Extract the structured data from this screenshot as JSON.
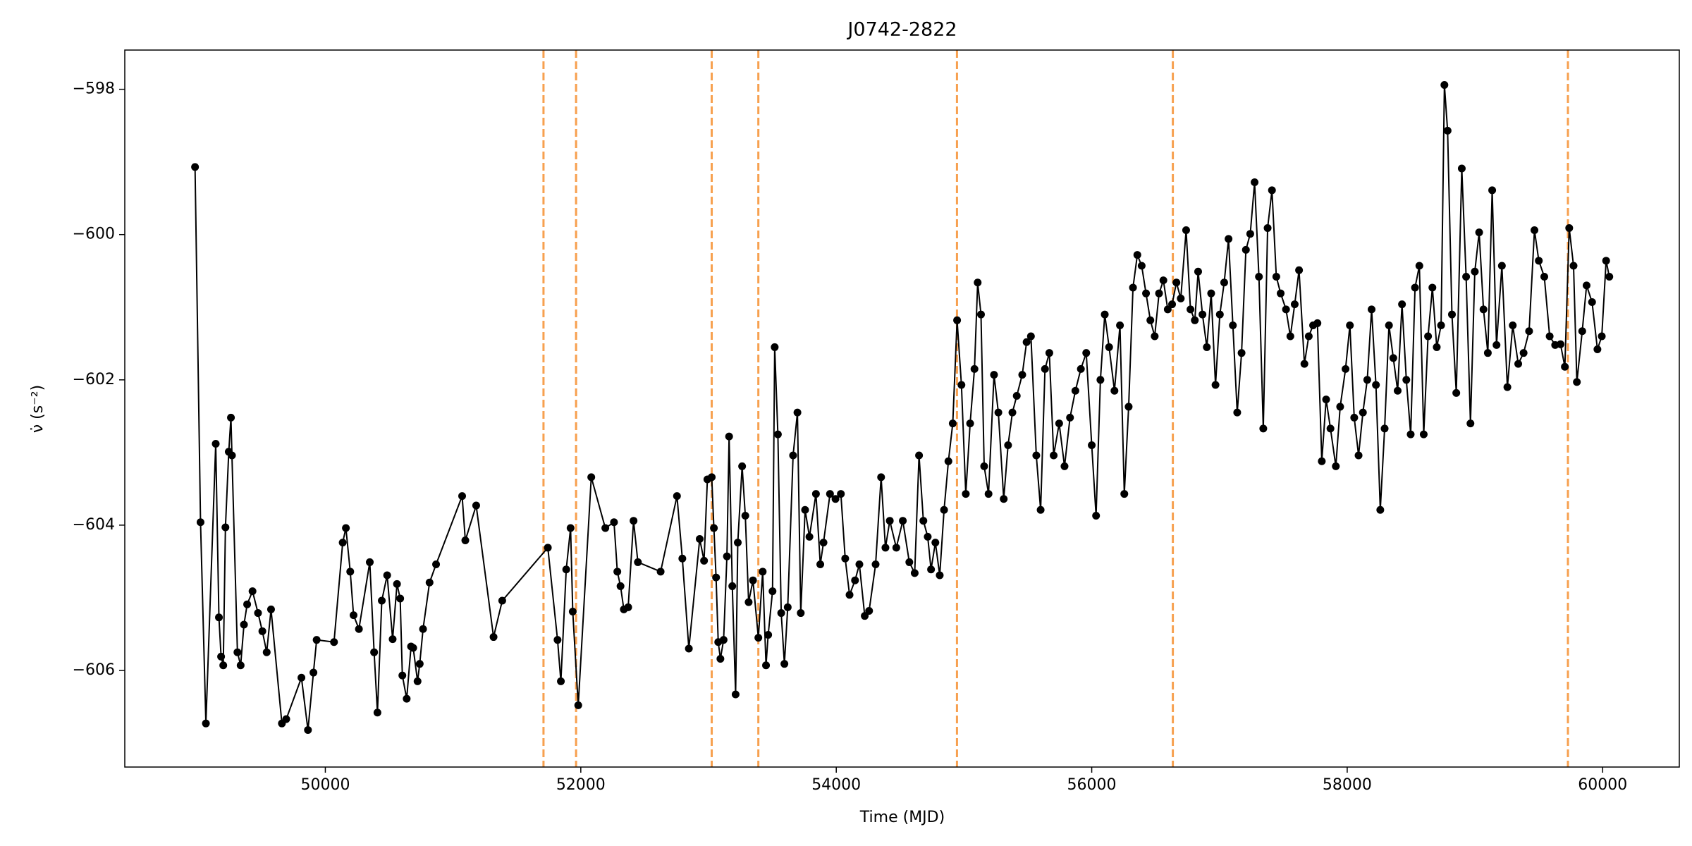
{
  "chart_data": {
    "type": "line",
    "title": "J0742-2822",
    "xlabel": "Time (MJD)",
    "ylabel": "ν̇ (s⁻²)",
    "x": [
      48980,
      49023,
      49065,
      49142,
      49167,
      49184,
      49201,
      49218,
      49244,
      49261,
      49269,
      49312,
      49337,
      49363,
      49388,
      49430,
      49473,
      49507,
      49541,
      49575,
      49660,
      49694,
      49813,
      49864,
      49907,
      49932,
      50068,
      50136,
      50161,
      50195,
      50221,
      50263,
      50348,
      50382,
      50408,
      50442,
      50484,
      50527,
      50561,
      50586,
      50603,
      50637,
      50671,
      50688,
      50722,
      50739,
      50765,
      50816,
      50867,
      51071,
      51096,
      51181,
      51317,
      51385,
      51742,
      51818,
      51844,
      51886,
      51920,
      51937,
      51980,
      52082,
      52192,
      52260,
      52286,
      52311,
      52337,
      52371,
      52413,
      52447,
      52625,
      52753,
      52795,
      52846,
      52931,
      52965,
      52991,
      53025,
      53042,
      53059,
      53076,
      53093,
      53118,
      53144,
      53161,
      53186,
      53212,
      53229,
      53263,
      53288,
      53314,
      53348,
      53390,
      53424,
      53450,
      53467,
      53501,
      53518,
      53543,
      53569,
      53594,
      53620,
      53662,
      53696,
      53722,
      53756,
      53790,
      53841,
      53875,
      53900,
      53951,
      53994,
      54036,
      54070,
      54104,
      54147,
      54181,
      54223,
      54257,
      54308,
      54351,
      54385,
      54419,
      54470,
      54521,
      54572,
      54614,
      54648,
      54682,
      54716,
      54742,
      54776,
      54810,
      54844,
      54878,
      54912,
      54946,
      54980,
      55014,
      55048,
      55082,
      55107,
      55133,
      55158,
      55192,
      55235,
      55269,
      55311,
      55345,
      55379,
      55413,
      55456,
      55490,
      55524,
      55566,
      55600,
      55634,
      55668,
      55702,
      55745,
      55787,
      55830,
      55872,
      55915,
      55957,
      56000,
      56034,
      56068,
      56102,
      56136,
      56178,
      56221,
      56255,
      56289,
      56323,
      56357,
      56391,
      56425,
      56459,
      56493,
      56527,
      56561,
      56595,
      56629,
      56663,
      56697,
      56739,
      56773,
      56807,
      56833,
      56867,
      56901,
      56935,
      56969,
      57003,
      57037,
      57071,
      57105,
      57139,
      57173,
      57207,
      57241,
      57275,
      57309,
      57343,
      57377,
      57411,
      57445,
      57479,
      57521,
      57555,
      57589,
      57623,
      57665,
      57699,
      57733,
      57767,
      57801,
      57835,
      57869,
      57911,
      57945,
      57987,
      58021,
      58055,
      58089,
      58123,
      58157,
      58191,
      58225,
      58259,
      58293,
      58327,
      58361,
      58395,
      58429,
      58463,
      58497,
      58531,
      58565,
      58599,
      58633,
      58667,
      58701,
      58735,
      58761,
      58786,
      58820,
      58854,
      58897,
      58931,
      58965,
      58999,
      59033,
      59067,
      59101,
      59135,
      59169,
      59211,
      59254,
      59296,
      59339,
      59381,
      59424,
      59466,
      59500,
      59543,
      59585,
      59628,
      59670,
      59704,
      59738,
      59772,
      59798,
      59840,
      59874,
      59917,
      59959,
      59993,
      60027,
      60052
    ],
    "series": [
      {
        "color": "#000000",
        "values": [
          -599.07,
          -603.96,
          -606.73,
          -602.88,
          -605.27,
          -605.81,
          -605.93,
          -604.03,
          -602.99,
          -602.52,
          -603.04,
          -605.75,
          -605.93,
          -605.37,
          -605.09,
          -604.91,
          -605.21,
          -605.46,
          -605.75,
          -605.16,
          -606.73,
          -606.67,
          -606.1,
          -606.82,
          -606.03,
          -605.58,
          -605.61,
          -604.24,
          -604.04,
          -604.64,
          -605.24,
          -605.43,
          -604.51,
          -605.75,
          -606.58,
          -605.04,
          -604.69,
          -605.57,
          -604.81,
          -605.01,
          -606.07,
          -606.39,
          -605.67,
          -605.69,
          -606.15,
          -605.91,
          -605.43,
          -604.79,
          -604.54,
          -603.6,
          -604.21,
          -603.73,
          -605.54,
          -605.04,
          -604.31,
          -605.58,
          -606.15,
          -604.61,
          -604.04,
          -605.19,
          -606.48,
          -603.34,
          -604.04,
          -603.96,
          -604.64,
          -604.84,
          -605.16,
          -605.13,
          -603.94,
          -604.51,
          -604.64,
          -603.6,
          -604.46,
          -605.7,
          -604.19,
          -604.49,
          -603.37,
          -603.34,
          -604.04,
          -604.72,
          -605.61,
          -605.84,
          -605.58,
          -604.43,
          -602.78,
          -604.84,
          -606.33,
          -604.24,
          -603.19,
          -603.87,
          -605.06,
          -604.76,
          -605.55,
          -604.64,
          -605.93,
          -605.51,
          -604.91,
          -601.55,
          -602.75,
          -605.21,
          -605.91,
          -605.13,
          -603.04,
          -602.45,
          -605.21,
          -603.79,
          -604.16,
          -603.57,
          -604.54,
          -604.24,
          -603.57,
          -603.64,
          -603.57,
          -604.46,
          -604.96,
          -604.76,
          -604.54,
          -605.25,
          -605.18,
          -604.54,
          -603.34,
          -604.31,
          -603.94,
          -604.31,
          -603.94,
          -604.51,
          -604.66,
          -603.04,
          -603.94,
          -604.16,
          -604.61,
          -604.24,
          -604.69,
          -603.79,
          -603.12,
          -602.6,
          -601.18,
          -602.07,
          -603.57,
          -602.6,
          -601.85,
          -600.66,
          -601.1,
          -603.19,
          -603.57,
          -601.93,
          -602.45,
          -603.64,
          -602.9,
          -602.45,
          -602.22,
          -601.93,
          -601.48,
          -601.4,
          -603.04,
          -603.79,
          -601.85,
          -601.63,
          -603.04,
          -602.6,
          -603.19,
          -602.52,
          -602.15,
          -601.85,
          -601.63,
          -602.9,
          -603.87,
          -602.0,
          -601.1,
          -601.55,
          -602.15,
          -601.25,
          -603.57,
          -602.37,
          -600.73,
          -600.28,
          -600.43,
          -600.81,
          -601.18,
          -601.4,
          -600.81,
          -600.63,
          -601.03,
          -600.96,
          -600.66,
          -600.88,
          -599.94,
          -601.03,
          -601.18,
          -600.51,
          -601.1,
          -601.55,
          -600.81,
          -602.07,
          -601.1,
          -600.66,
          -600.06,
          -601.25,
          -602.45,
          -601.63,
          -600.21,
          -599.99,
          -599.28,
          -600.58,
          -602.67,
          -599.91,
          -599.39,
          -600.58,
          -600.81,
          -601.03,
          -601.4,
          -600.96,
          -600.49,
          -601.78,
          -601.4,
          -601.25,
          -601.22,
          -603.12,
          -602.27,
          -602.67,
          -603.19,
          -602.37,
          -601.85,
          -601.25,
          -602.52,
          -603.04,
          -602.45,
          -602.0,
          -601.03,
          -602.07,
          -603.79,
          -602.67,
          -601.25,
          -601.7,
          -602.15,
          -600.96,
          -602.0,
          -602.75,
          -600.73,
          -600.43,
          -602.75,
          -601.4,
          -600.73,
          -601.55,
          -601.25,
          -597.94,
          -598.57,
          -601.1,
          -602.18,
          -599.09,
          -600.58,
          -602.6,
          -600.51,
          -599.97,
          -601.03,
          -601.63,
          -599.39,
          -601.52,
          -600.43,
          -602.1,
          -601.25,
          -601.78,
          -601.63,
          -601.33,
          -599.94,
          -600.36,
          -600.58,
          -601.4,
          -601.52,
          -601.51,
          -601.82,
          -599.91,
          -600.43,
          -602.03,
          -601.33,
          -600.7,
          -600.93,
          -601.58,
          -601.4,
          -600.36,
          -600.58
        ]
      }
    ],
    "vlines": {
      "x": [
        51708,
        51963,
        53025,
        53390,
        54945,
        56635,
        59728
      ],
      "color": "#f7a04f"
    },
    "xlim": [
      48430,
      60600
    ],
    "ylim": [
      -607.33,
      -597.46
    ],
    "xticks": [
      50000,
      52000,
      54000,
      56000,
      58000,
      60000
    ],
    "yticks": [
      {
        "value": -598,
        "label": "−598"
      },
      {
        "value": -600,
        "label": "−600"
      },
      {
        "value": -602,
        "label": "−602"
      },
      {
        "value": -604,
        "label": "−604"
      },
      {
        "value": -606,
        "label": "−606"
      }
    ]
  }
}
